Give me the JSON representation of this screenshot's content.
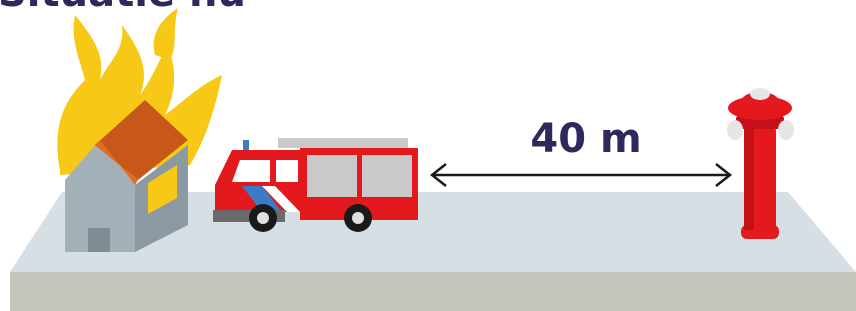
{
  "title": "Situatie nu",
  "distance_label": "40 m"
}
